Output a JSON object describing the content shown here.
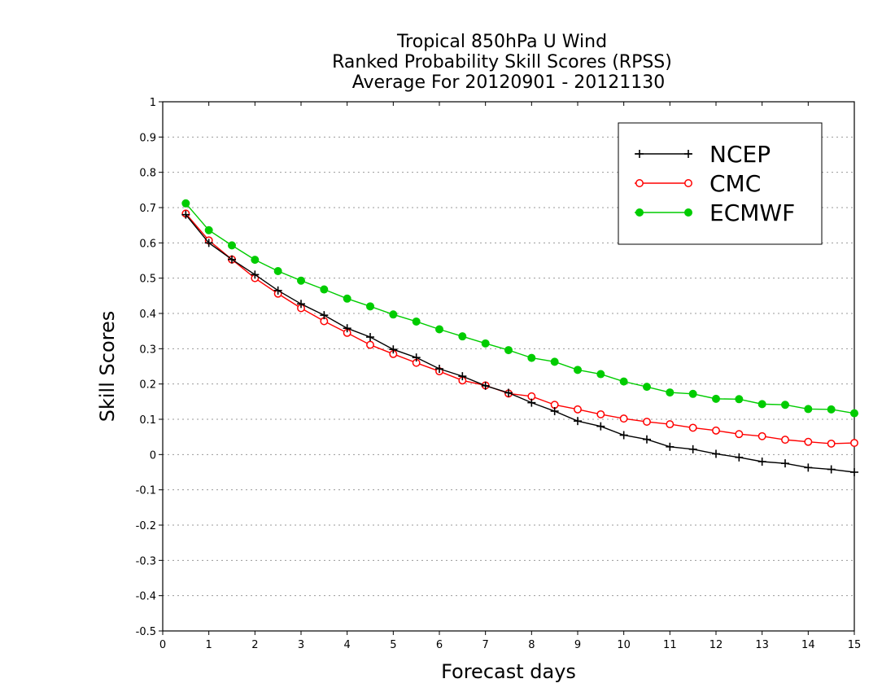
{
  "chart_data": {
    "type": "line",
    "title_lines": [
      "Tropical 850hPa U Wind",
      "Ranked Probability Skill Scores (RPSS)",
      "Average For 20120901 - 20121130"
    ],
    "xlabel": "Forecast days",
    "ylabel": "Skill Scores",
    "xlim": [
      0,
      15
    ],
    "ylim": [
      -0.5,
      1
    ],
    "xticks": [
      "0",
      "1",
      "2",
      "3",
      "4",
      "5",
      "6",
      "7",
      "8",
      "9",
      "10",
      "11",
      "12",
      "13",
      "14",
      "15"
    ],
    "yticks": [
      "-0.5",
      "-0.4",
      "-0.3",
      "-0.2",
      "-0.1",
      "0",
      "0.1",
      "0.2",
      "0.3",
      "0.4",
      "0.5",
      "0.6",
      "0.7",
      "0.8",
      "0.9",
      "1"
    ],
    "grid": "horizontal dotted",
    "legend_position": "top-right",
    "x": [
      0.5,
      1,
      1.5,
      2,
      2.5,
      3,
      3.5,
      4,
      4.5,
      5,
      5.5,
      6,
      6.5,
      7,
      7.5,
      8,
      8.5,
      9,
      9.5,
      10,
      10.5,
      11,
      11.5,
      12,
      12.5,
      13,
      13.5,
      14,
      14.5,
      15
    ],
    "series": [
      {
        "name": "NCEP",
        "color": "#000000",
        "marker": "plus",
        "values": [
          0.68,
          0.6,
          0.553,
          0.51,
          0.465,
          0.427,
          0.395,
          0.358,
          0.333,
          0.298,
          0.275,
          0.243,
          0.222,
          0.195,
          0.175,
          0.147,
          0.123,
          0.095,
          0.08,
          0.055,
          0.043,
          0.022,
          0.015,
          0.002,
          -0.008,
          -0.02,
          -0.025,
          -0.037,
          -0.042,
          -0.05
        ]
      },
      {
        "name": "CMC",
        "color": "#ff0000",
        "marker": "open-circle",
        "values": [
          0.683,
          0.607,
          0.553,
          0.5,
          0.456,
          0.415,
          0.378,
          0.345,
          0.311,
          0.285,
          0.26,
          0.236,
          0.21,
          0.196,
          0.173,
          0.165,
          0.141,
          0.128,
          0.114,
          0.102,
          0.093,
          0.086,
          0.076,
          0.068,
          0.058,
          0.052,
          0.042,
          0.036,
          0.031,
          0.033
        ]
      },
      {
        "name": "ECMWF",
        "color": "#00cc00",
        "marker": "filled-circle",
        "values": [
          0.712,
          0.636,
          0.593,
          0.552,
          0.52,
          0.493,
          0.468,
          0.442,
          0.42,
          0.397,
          0.377,
          0.355,
          0.335,
          0.315,
          0.296,
          0.274,
          0.263,
          0.24,
          0.228,
          0.207,
          0.192,
          0.176,
          0.172,
          0.158,
          0.157,
          0.143,
          0.141,
          0.129,
          0.128,
          0.117
        ]
      }
    ]
  }
}
